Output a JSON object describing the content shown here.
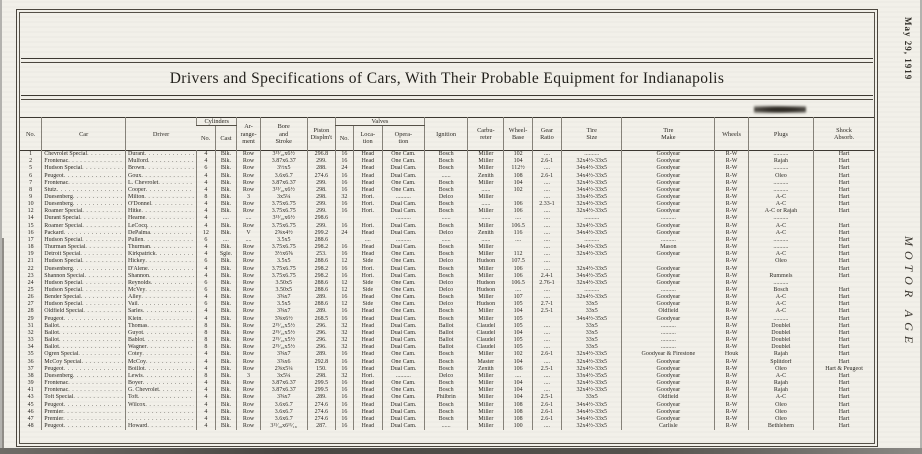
{
  "page": {
    "margin_date": "May 29, 1919",
    "margin_magazine": "MOTOR AGE",
    "title": "Drivers and Specifications of Cars, With Their Probable Equipment for Indianapolis"
  },
  "table": {
    "group_headers": {
      "cylinders": "Cylinders",
      "valves": "Valves"
    },
    "headers": {
      "no": "No.",
      "car": "Car",
      "driver": "Driver",
      "arrangement": "Ar-\nrange-\nment",
      "bore_stroke": "Bore\nand\nStroke",
      "piston_displ": "Piston\nDisplm't",
      "ignition": "Ignition",
      "carbureter": "Carbu-\nreter",
      "wheel_base": "Wheel-\nBase",
      "gear_ratio": "Gear\nRatio",
      "tire_size": "Tire\nSize",
      "tire_make": "Tire\nMake",
      "wheels": "Wheels",
      "plugs": "Plugs",
      "shock_absorb": "Shock\nAbsorb."
    },
    "sub_headers": {
      "cyl_no": "No.",
      "cyl_cast": "Cast",
      "valves_no": "No.",
      "valves_location": "Loca-\ntion",
      "valves_operation": "Opera-\ntion"
    },
    "columns_order": [
      "no",
      "car",
      "driver",
      "cyl_no",
      "cyl_cast",
      "arrangement",
      "bore_stroke",
      "piston_displ",
      "valves_no",
      "valves_location",
      "valves_operation",
      "ignition",
      "carbureter",
      "wheel_base",
      "gear_ratio",
      "tire_size",
      "tire_make",
      "wheels",
      "plugs",
      "shock_absorb"
    ],
    "rows": [
      [
        "1",
        "Chevrolet Special",
        "Durant",
        "4",
        "Blk.",
        "Row",
        "3¹³⁄₁₆x6½",
        "296.8",
        "16",
        "Head",
        "One Cam.",
        "Bosch",
        "Miller",
        "102",
        "....",
        "..........",
        "Goodyear",
        "R-W",
        "..........",
        "Hart"
      ],
      [
        "2",
        "Frontenac",
        "Mulford",
        "4",
        "Blk.",
        "Row",
        "3.87x6.37",
        "299.",
        "16",
        "Head",
        "One Cam.",
        "Bosch",
        "Miller",
        "104",
        "2.6-1",
        "32x4½-33x5",
        "Goodyear",
        "R-W",
        "Rajah",
        "Hart"
      ],
      [
        "5",
        "Hudson Special",
        "Brown",
        "6",
        "Blk.",
        "Row",
        "3½x5",
        "288.",
        "24",
        "Head",
        "Dual Cam.",
        "Bosch",
        "Miller",
        "112½",
        "....",
        "34x4½-33x5",
        "Goodyear",
        "R-W",
        "..........",
        "Hart"
      ],
      [
        "6",
        "Peugeot",
        "Goux",
        "4",
        "Blk.",
        "Row",
        "3.6x6.7",
        "274.6",
        "16",
        "Head",
        "Dual Cam.",
        "......",
        "Zenith",
        "108",
        "2.6-1",
        "34x4½-33x5",
        "Goodyear",
        "R-W",
        "Oleo",
        "Hart"
      ],
      [
        "7",
        "Frontenac",
        "L. Chevrolet",
        "4",
        "Blk.",
        "Row",
        "3.87x6.37",
        "299.",
        "16",
        "Head",
        "One Cam.",
        "Bosch",
        "Miller",
        "104",
        "....",
        "32x4½-33x5",
        "Goodyear",
        "R-W",
        "..........",
        "Hart"
      ],
      [
        "8",
        "Stutz",
        "Cooper",
        "4",
        "Blk.",
        "Row",
        "3¹³⁄₁₆x6½",
        "298.",
        "16",
        "Head",
        "One Cam.",
        "Bosch",
        "......",
        "102",
        "....",
        "34x4½-33x5",
        "Goodyear",
        "R-W",
        "..........",
        "Hart"
      ],
      [
        "9",
        "Duesenberg",
        "Milton",
        "8",
        "Blk.",
        "3",
        "3x5¼",
        "298.",
        "32",
        "Hori.",
        "..........",
        "Delco",
        "Miller",
        "",
        "....",
        "33x4½-35x5",
        "Goodyear",
        "R-W",
        "A-C",
        "Hart"
      ],
      [
        "10",
        "Duesenberg",
        "O'Donnel",
        "4",
        "Blk.",
        "Row",
        "3.75x6.75",
        "299.",
        "16",
        "Hori.",
        "Dual Cam.",
        "Bosch",
        "......",
        "106",
        "2.33-1",
        "32x4½-33x5",
        "Goodyear",
        "R-W",
        "A-C",
        "Hart"
      ],
      [
        "12",
        "Roamer Special",
        "Hitke",
        "4",
        "Blk.",
        "Row",
        "3.75x6.75",
        "299.",
        "16",
        "Hori.",
        "Dual Cam.",
        "Bosch",
        "Miller",
        "106",
        "....",
        "32x4½-33x5",
        "Goodyear",
        "R-W",
        "A-C or Rajah",
        "Hart"
      ],
      [
        "14",
        "Durant Special",
        "Hearne",
        "4",
        "....",
        "....",
        "3¹³⁄₁₆x6½",
        "298.6",
        "",
        "",
        "..........",
        "......",
        "......",
        "....",
        "....",
        "..........",
        "..........",
        "R-W",
        "..........",
        ""
      ],
      [
        "15",
        "Roamer Special",
        "LeCocq",
        "4",
        "Blk.",
        "Row",
        "3.75x6.75",
        "299.",
        "16",
        "Hori.",
        "Dual Cam.",
        "Bosch",
        "Miller",
        "106.5",
        "....",
        "32x4½-33x5",
        "Goodyear",
        "R-W",
        "A-C",
        "Hart"
      ],
      [
        "16",
        "Packard",
        "DePalma",
        "12",
        "Blk.",
        "V",
        "2⅝x4½",
        "299.2",
        "24",
        "Head",
        "Dual Cam.",
        "Delco",
        "Zenith",
        "116",
        "....",
        "34x4½-33x5",
        "Goodyear",
        "R-W",
        "A-C",
        "Hart"
      ],
      [
        "17",
        "Hudson Special",
        "Pullen",
        "6",
        "....",
        "....",
        "3.5x5",
        "288.6",
        "",
        "....",
        "..........",
        "......",
        "......",
        "....",
        "....",
        "..........",
        "..........",
        "R-W",
        "..........",
        "Hart"
      ],
      [
        "18",
        "Thurman Special",
        "Thurman",
        "4",
        "Blk.",
        "Row",
        "3.75x6.75",
        "298.2",
        "16",
        "Head",
        "Dual Cam.",
        "Bosch",
        "Miller",
        "",
        "....",
        "34x4½-33x5",
        "Mason",
        "R-W",
        "..........",
        "Hart"
      ],
      [
        "19",
        "Detroit Special",
        "Kirkpatrick",
        "4",
        "Sgle.",
        "Row",
        "3½x6⅝",
        "253.",
        "16",
        "Head",
        "One Cam.",
        "Bosch",
        "Miller",
        "112",
        "....",
        "32x4½-33x5",
        "Goodyear",
        "R-W",
        "A-C",
        "Hart"
      ],
      [
        "21",
        "Hudson Special",
        "Hickey",
        "6",
        "Blk.",
        "Row",
        "3.5x5",
        "288.6",
        "12",
        "Side",
        "One Cam.",
        "Delco",
        "Hudson",
        "107.5",
        "....",
        "",
        "",
        "R-W",
        "Oleo",
        "Hart"
      ],
      [
        "22",
        "Duesenberg",
        "D'Alene",
        "4",
        "Blk.",
        "Row",
        "3.75x6.75",
        "298.2",
        "16",
        "Hori.",
        "Dual Cam.",
        "Bosch",
        "Miller",
        "106",
        "....",
        "32x4½-33x5",
        "Goodyear",
        "R-W",
        "",
        "Hart"
      ],
      [
        "23",
        "Shannon Special",
        "Shannon",
        "4",
        "Blk.",
        "Row",
        "3.75x6.75",
        "298.2",
        "16",
        "Hori.",
        "Dual Cam.",
        "Bosch",
        "Miller",
        "106",
        "2.4-1",
        "34x4½-35x5",
        "Goodyear",
        "R-W",
        "Rummels",
        "Hart"
      ],
      [
        "24",
        "Hudson Special",
        "Reynolds",
        "6",
        "Blk.",
        "Row",
        "3.50x5",
        "288.6",
        "12",
        "Side",
        "One Cam.",
        "Delco",
        "Hudson",
        "106.5",
        "2.76-1",
        "32x4½-33x5",
        "Goodyear",
        "R-W",
        "..........",
        ""
      ],
      [
        "25",
        "Hudson Special",
        "McVey",
        "6",
        "Blk.",
        "Row",
        "3.50x5",
        "288.6",
        "12",
        "Side",
        "One Cam.",
        "Delco",
        "Hudson",
        "....",
        "....",
        "..........",
        "..........",
        "R-W",
        "Bosch",
        "Hart"
      ],
      [
        "26",
        "Bender Special",
        "Alley",
        "4",
        "Blk.",
        "Row",
        "3⅝x7",
        "289.",
        "16",
        "Head",
        "One Cam.",
        "Bosch",
        "Miller",
        "107",
        "....",
        "32x4½-33x5",
        "Goodyear",
        "R-W",
        "A-C",
        "Hart"
      ],
      [
        "27",
        "Hudson Special",
        "Vail",
        "6",
        "Blk.",
        "Row",
        "3.5x5",
        "288.6",
        "12",
        "Side",
        "One Cam.",
        "Delco",
        "Hudson",
        "105",
        "2.7-1",
        "33x5",
        "Goodyear",
        "R-W",
        "A-C",
        "Hart"
      ],
      [
        "28",
        "Oldfield Special",
        "Sarles",
        "4",
        "Blk.",
        "Row",
        "3⅝x7",
        "289.",
        "16",
        "Head",
        "One Cam.",
        "Bosch",
        "Miller",
        "104",
        "2.5-1",
        "33x5",
        "Oldfield",
        "R-W",
        "A-C",
        "Hart"
      ],
      [
        "29",
        "Peugeot",
        "Klein",
        "4",
        "Blk.",
        "Row",
        "3⅝x6½",
        "268.5",
        "16",
        "Head",
        "Dual Cam.",
        "Bosch",
        "Miller",
        "105",
        "",
        "34x4½-35x5",
        "Goodyear",
        "R-W",
        "..........",
        "Hart"
      ],
      [
        "31",
        "Ballot",
        "Thomas",
        "8",
        "Blk.",
        "Row",
        "2¹⁵⁄₁₆x5½",
        "296.",
        "32",
        "Head",
        "Dual Cam.",
        "Ballot",
        "Claudel",
        "105",
        "....",
        "33x5",
        "..........",
        "R-W",
        "Doublel",
        "Hart"
      ],
      [
        "32",
        "Ballot",
        "Guyot",
        "8",
        "Blk.",
        "Row",
        "2¹⁵⁄₁₆x5½",
        "296.",
        "32",
        "Head",
        "Dual Cam.",
        "Ballot",
        "Claudel",
        "104",
        "....",
        "33x5",
        "..........",
        "R-W",
        "Doublel",
        "Hart"
      ],
      [
        "33",
        "Ballot",
        "Bablot",
        "8",
        "Blk.",
        "Row",
        "2¹⁵⁄₁₆x5½",
        "296.",
        "32",
        "Head",
        "Dual Cam.",
        "Ballot",
        "Claudel",
        "105",
        "....",
        "33x5",
        "..........",
        "R-W",
        "Doublel",
        "Hart"
      ],
      [
        "34",
        "Ballot",
        "Wagner",
        "8",
        "Blk.",
        "Row",
        "2¹⁵⁄₁₆x5½",
        "296.",
        "32",
        "Head",
        "Dual Cam.",
        "Ballot",
        "Claudel",
        "105",
        "....",
        "33x5",
        "..........",
        "R-W",
        "Doublel",
        "Hart"
      ],
      [
        "35",
        "Ogren Special",
        "Cotey",
        "4",
        "Blk.",
        "Row",
        "3⅝x7",
        "289.",
        "16",
        "Head",
        "One Cam.",
        "Bosch",
        "Miller",
        "102",
        "2.6-1",
        "32x4½-33x5",
        "Goodyear & Firestone",
        "Houk",
        "Rajah",
        "Hart"
      ],
      [
        "36",
        "McCoy Special",
        "McCoy",
        "4",
        "Blk.",
        "Row",
        "3⅞x6",
        "292.8",
        "16",
        "Head",
        "One Cam.",
        "Bosch",
        "Master",
        "104",
        "....",
        "32x4½-33x5",
        "Goodyear",
        "R-W",
        "Splitdorf",
        "Hart"
      ],
      [
        "37",
        "Peugeot",
        "Boillot",
        "4",
        "Blk.",
        "Row",
        "2⅝x5¼",
        "150.",
        "16",
        "Head",
        "Dual Cam.",
        "Bosch",
        "Zenith",
        "106",
        "2.5-1",
        "32x4½-33x5",
        "Goodyear",
        "R-W",
        "Oleo",
        "Hart & Peugeot"
      ],
      [
        "38",
        "Duesenberg",
        "Lewis",
        "8",
        "Blk.",
        "3",
        "3x5¼",
        "298.",
        "32",
        "Hori.",
        "..........",
        "Delco",
        "Miller",
        "....",
        "....",
        "33x4½-35x5",
        "Goodyear",
        "R-W",
        "A-C",
        "Hart"
      ],
      [
        "39",
        "Frontenac",
        "Boyer",
        "4",
        "Blk.",
        "Row",
        "3.87x6.37",
        "299.5",
        "16",
        "Head",
        "One Cam.",
        "Bosch",
        "Miller",
        "104",
        "....",
        "32x4½-33x5",
        "Goodyear",
        "R-W",
        "Rajah",
        "Hart"
      ],
      [
        "41",
        "Frontenac",
        "G. Chevrolet",
        "4",
        "Blk.",
        "Row",
        "3.87x6.37",
        "299.5",
        "16",
        "Head",
        "One Cam.",
        "Bosch",
        "Miller",
        "104",
        "....",
        "32x4½-33x5",
        "Goodyear",
        "R-W",
        "Rajah",
        "Hart"
      ],
      [
        "43",
        "Toft Special",
        "Toft",
        "4",
        "Blk.",
        "Row",
        "3⅝x7",
        "289.",
        "16",
        "Head",
        "One Cam.",
        "Philbrin",
        "Miller",
        "104",
        "2.5-1",
        "33x5",
        "Oldfield",
        "R-W",
        "A-C",
        "Hart"
      ],
      [
        "45",
        "Peugeot",
        "Wilcox",
        "4",
        "Blk.",
        "Row",
        "3.6x6.7",
        "274.6",
        "16",
        "Head",
        "Dual Cam.",
        "Bosch",
        "Miller",
        "108",
        "2.6-1",
        "34x4½-33x5",
        "Goodyear",
        "R-W",
        "Oleo",
        "Hart"
      ],
      [
        "46",
        "Premier",
        "",
        "4",
        "Blk.",
        "Row",
        "3.6x6.7",
        "274.6",
        "16",
        "Head",
        "Dual Cam.",
        "Bosch",
        "Miller",
        "108",
        "2.6-1",
        "34x4½-33x5",
        "Goodyear",
        "R-W",
        "Oleo",
        "Hart"
      ],
      [
        "47",
        "Premier",
        "",
        "4",
        "Blk.",
        "Row",
        "3.6x6.7",
        "274.6",
        "16",
        "Head",
        "Dual Cam.",
        "Bosch",
        "Miller",
        "108",
        "2.6-1",
        "34x4½-33x5",
        "Goodyear",
        "R-W",
        "Oleo",
        "Hart"
      ],
      [
        "48",
        "Peugeot",
        "Howard",
        "4",
        "Blk.",
        "Row",
        "3¹¹⁄₁₆x6¹¹⁄₁₆",
        "287.",
        "16",
        "Head",
        "Dual Cam.",
        "......",
        "Miller",
        "100",
        "....",
        "32x4½-33x5",
        "Carlisle",
        "R-W",
        "Bethlehem",
        "Hart"
      ]
    ]
  },
  "colors": {
    "paper": "#f2f0e9",
    "ink": "#2b2823",
    "rule": "#3c3831"
  }
}
